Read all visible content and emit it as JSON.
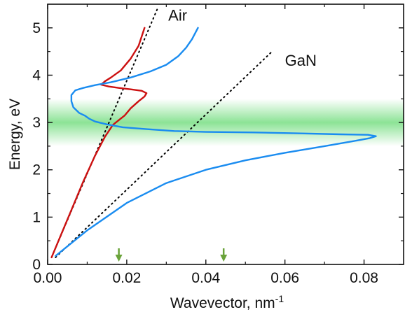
{
  "chart_data": {
    "type": "line",
    "xlabel": "Wavevector, nm",
    "xlabel_superscript": "-1",
    "ylabel": "Energy, eV",
    "xlim": [
      0,
      0.09
    ],
    "ylim": [
      0,
      5.5
    ],
    "xticks": [
      0.0,
      0.02,
      0.04,
      0.06,
      0.08
    ],
    "xtick_labels": [
      "0.00",
      "0.02",
      "0.04",
      "0.06",
      "0.08"
    ],
    "yticks": [
      0,
      1,
      2,
      3,
      4,
      5
    ],
    "ytick_labels": [
      "0",
      "1",
      "2",
      "3",
      "4",
      "5"
    ],
    "grid": false,
    "band": {
      "y_center": 3.0,
      "y_low": 2.5,
      "y_high": 3.5,
      "color": "#2ecc40"
    },
    "arrows": {
      "x": [
        0.018,
        0.0445
      ],
      "color": "#6aa33a"
    },
    "series": [
      {
        "style": "dotted",
        "color": "#000000",
        "points": [
          [
            0.001,
            0.15
          ],
          [
            0.028,
            5.45
          ]
        ]
      },
      {
        "style": "dotted",
        "color": "#000000",
        "points": [
          [
            0.002,
            0.15
          ],
          [
            0.057,
            4.52
          ]
        ]
      },
      {
        "style": "solid",
        "color": "#cc1111",
        "points": [
          [
            0.001,
            0.15
          ],
          [
            0.003,
            0.55
          ],
          [
            0.006,
            1.15
          ],
          [
            0.009,
            1.75
          ],
          [
            0.012,
            2.3
          ],
          [
            0.0145,
            2.7
          ],
          [
            0.0165,
            2.95
          ],
          [
            0.018,
            3.05
          ],
          [
            0.0195,
            3.15
          ],
          [
            0.021,
            3.3
          ],
          [
            0.023,
            3.45
          ],
          [
            0.0245,
            3.55
          ],
          [
            0.025,
            3.62
          ],
          [
            0.0238,
            3.67
          ],
          [
            0.021,
            3.7
          ],
          [
            0.018,
            3.73
          ],
          [
            0.0155,
            3.76
          ],
          [
            0.0135,
            3.8
          ],
          [
            0.0145,
            3.87
          ],
          [
            0.016,
            3.95
          ],
          [
            0.0185,
            4.1
          ],
          [
            0.021,
            4.35
          ],
          [
            0.023,
            4.62
          ],
          [
            0.0245,
            5.0
          ]
        ]
      },
      {
        "style": "solid",
        "color": "#1a8cf0",
        "points": [
          [
            0.002,
            0.18
          ],
          [
            0.01,
            0.72
          ],
          [
            0.02,
            1.3
          ],
          [
            0.03,
            1.72
          ],
          [
            0.04,
            2.0
          ],
          [
            0.05,
            2.2
          ],
          [
            0.06,
            2.36
          ],
          [
            0.07,
            2.5
          ],
          [
            0.077,
            2.6
          ],
          [
            0.0815,
            2.67
          ],
          [
            0.083,
            2.71
          ],
          [
            0.081,
            2.74
          ],
          [
            0.074,
            2.75
          ],
          [
            0.063,
            2.77
          ],
          [
            0.052,
            2.79
          ],
          [
            0.04,
            2.8
          ],
          [
            0.032,
            2.82
          ],
          [
            0.025,
            2.86
          ],
          [
            0.019,
            2.9
          ],
          [
            0.015,
            2.96
          ],
          [
            0.012,
            3.02
          ],
          [
            0.0105,
            3.08
          ],
          [
            0.0095,
            3.14
          ],
          [
            0.008,
            3.2
          ],
          [
            0.0065,
            3.32
          ],
          [
            0.006,
            3.45
          ],
          [
            0.006,
            3.58
          ],
          [
            0.007,
            3.68
          ],
          [
            0.009,
            3.73
          ],
          [
            0.012,
            3.79
          ],
          [
            0.016,
            3.85
          ],
          [
            0.021,
            3.95
          ],
          [
            0.026,
            4.08
          ],
          [
            0.03,
            4.22
          ],
          [
            0.033,
            4.4
          ],
          [
            0.035,
            4.58
          ],
          [
            0.0365,
            4.76
          ],
          [
            0.038,
            5.0
          ]
        ]
      }
    ],
    "annotations": [
      {
        "text": "Air",
        "x": 0.0305,
        "y": 5.15
      },
      {
        "text": "GaN",
        "x": 0.06,
        "y": 4.2
      }
    ]
  }
}
